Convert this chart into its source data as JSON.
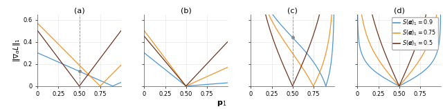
{
  "s_values": [
    0.9,
    0.75,
    0.5
  ],
  "colors": [
    "#4c96d0",
    "#f0952a",
    "#6b3520"
  ],
  "legend_labels": [
    "$S(\\boldsymbol{\\alpha})_1 = 0.9$",
    "$S(\\boldsymbol{\\alpha})_1 = 0.75$",
    "$S(\\boldsymbol{\\alpha})_1 = 0.5$"
  ],
  "panel_titles": [
    "(a)",
    "(b)",
    "(c)",
    "(d)"
  ],
  "ylabel": "$\\|\\nabla_\\alpha L\\|_1$",
  "xlabel": "$\\mathbf{p}_1$",
  "ylim": [
    0,
    0.65
  ],
  "xlim": [
    0,
    1
  ],
  "xticks": [
    0,
    0.25,
    0.5,
    0.75
  ],
  "yticks": [
    0.0,
    0.2,
    0.4,
    0.6
  ],
  "vline_panels": [
    0,
    2
  ],
  "figsize": [
    6.4,
    1.58
  ],
  "dpi": 100
}
